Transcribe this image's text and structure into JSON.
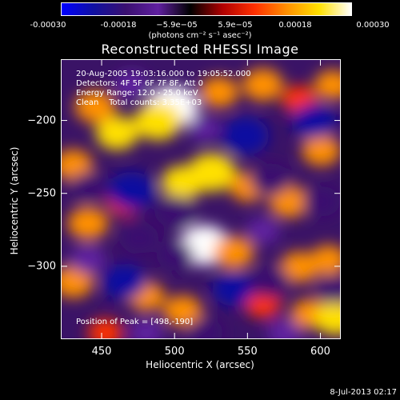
{
  "colorbar": {
    "ticks": [
      "-0.00030",
      "-0.00018",
      "−5.9e−05",
      "5.9e−05",
      "0.00018",
      "0.00030"
    ],
    "units": "(photons cm⁻² s⁻¹ asec⁻²)"
  },
  "info": {
    "time_range": "20-Aug-2005 19:03:16.000 to 19:05:52.000",
    "detectors": "Detectors: 4F 5F 6F 7F 8F, Att 0",
    "energy": "Energy Range: 12.0 - 25.0 keV",
    "clean": "Clean    Total counts: 3.35E+03",
    "peak": "Position of Peak = [498,-190]"
  },
  "stamp": "8-Jul-2013 02:17",
  "chart_data": {
    "type": "heatmap",
    "title": "Reconstructed RHESSI Image",
    "xlabel": "Heliocentric X (arcsec)",
    "ylabel": "Heliocentric Y (arcsec)",
    "xlim": [
      422,
      614
    ],
    "ylim": [
      -350,
      -158
    ],
    "xticks": [
      450,
      500,
      550,
      600
    ],
    "yticks": [
      -200,
      -250,
      -300
    ],
    "clim": [
      -0.0003,
      0.0003
    ],
    "colormap": [
      "#0000ff",
      "#1010a0",
      "#3a1070",
      "#6020a0",
      "#000000",
      "#b00000",
      "#ff3000",
      "#ff9000",
      "#ffe000",
      "#ffffff"
    ],
    "peak_position": [
      498,
      -190
    ],
    "blobs": [
      {
        "x": 498,
        "y": -190,
        "v": 0.0003
      },
      {
        "x": 488,
        "y": -200,
        "v": 0.00025
      },
      {
        "x": 460,
        "y": -208,
        "v": 0.0002
      },
      {
        "x": 445,
        "y": -190,
        "v": 0.00018
      },
      {
        "x": 530,
        "y": -180,
        "v": 0.00016
      },
      {
        "x": 560,
        "y": -175,
        "v": 0.00018
      },
      {
        "x": 585,
        "y": -185,
        "v": 0.00012
      },
      {
        "x": 608,
        "y": -175,
        "v": 0.00014
      },
      {
        "x": 430,
        "y": -230,
        "v": 0.00016
      },
      {
        "x": 525,
        "y": -235,
        "v": 0.00026
      },
      {
        "x": 505,
        "y": -242,
        "v": 0.0002
      },
      {
        "x": 550,
        "y": -245,
        "v": 0.00014
      },
      {
        "x": 600,
        "y": -220,
        "v": 0.00016
      },
      {
        "x": 578,
        "y": -255,
        "v": 0.00018
      },
      {
        "x": 440,
        "y": -270,
        "v": 0.00018
      },
      {
        "x": 465,
        "y": -255,
        "v": 0.00013
      },
      {
        "x": 520,
        "y": -285,
        "v": 0.00028
      },
      {
        "x": 540,
        "y": -290,
        "v": 0.00018
      },
      {
        "x": 585,
        "y": -300,
        "v": 0.00016
      },
      {
        "x": 605,
        "y": -295,
        "v": 0.00014
      },
      {
        "x": 430,
        "y": -310,
        "v": 0.00018
      },
      {
        "x": 480,
        "y": -320,
        "v": 0.00014
      },
      {
        "x": 505,
        "y": -330,
        "v": 0.00016
      },
      {
        "x": 560,
        "y": -325,
        "v": 0.00013
      },
      {
        "x": 592,
        "y": -332,
        "v": 0.00014
      },
      {
        "x": 610,
        "y": -335,
        "v": 0.0002
      },
      {
        "x": 452,
        "y": -345,
        "v": 0.00012
      },
      {
        "x": 595,
        "y": -200,
        "v": -0.00022
      },
      {
        "x": 548,
        "y": -210,
        "v": -0.00025
      },
      {
        "x": 470,
        "y": -248,
        "v": -0.00026
      },
      {
        "x": 440,
        "y": -245,
        "v": -0.00014
      },
      {
        "x": 500,
        "y": -262,
        "v": -0.00018
      },
      {
        "x": 565,
        "y": -240,
        "v": -0.00018
      },
      {
        "x": 600,
        "y": -255,
        "v": -0.00015
      },
      {
        "x": 475,
        "y": -280,
        "v": -0.00016
      },
      {
        "x": 500,
        "y": -292,
        "v": -0.00014
      },
      {
        "x": 560,
        "y": -275,
        "v": -0.0001
      },
      {
        "x": 440,
        "y": -295,
        "v": -0.00013
      },
      {
        "x": 465,
        "y": -310,
        "v": -0.00022
      },
      {
        "x": 540,
        "y": -315,
        "v": -0.0002
      },
      {
        "x": 565,
        "y": -310,
        "v": -0.00018
      },
      {
        "x": 608,
        "y": -315,
        "v": -0.00014
      },
      {
        "x": 520,
        "y": -345,
        "v": -0.00014
      },
      {
        "x": 480,
        "y": -345,
        "v": -0.0001
      },
      {
        "x": 575,
        "y": -345,
        "v": -0.00012
      },
      {
        "x": 520,
        "y": -205,
        "v": -8e-05
      },
      {
        "x": 470,
        "y": -175,
        "v": -0.0001
      }
    ]
  }
}
